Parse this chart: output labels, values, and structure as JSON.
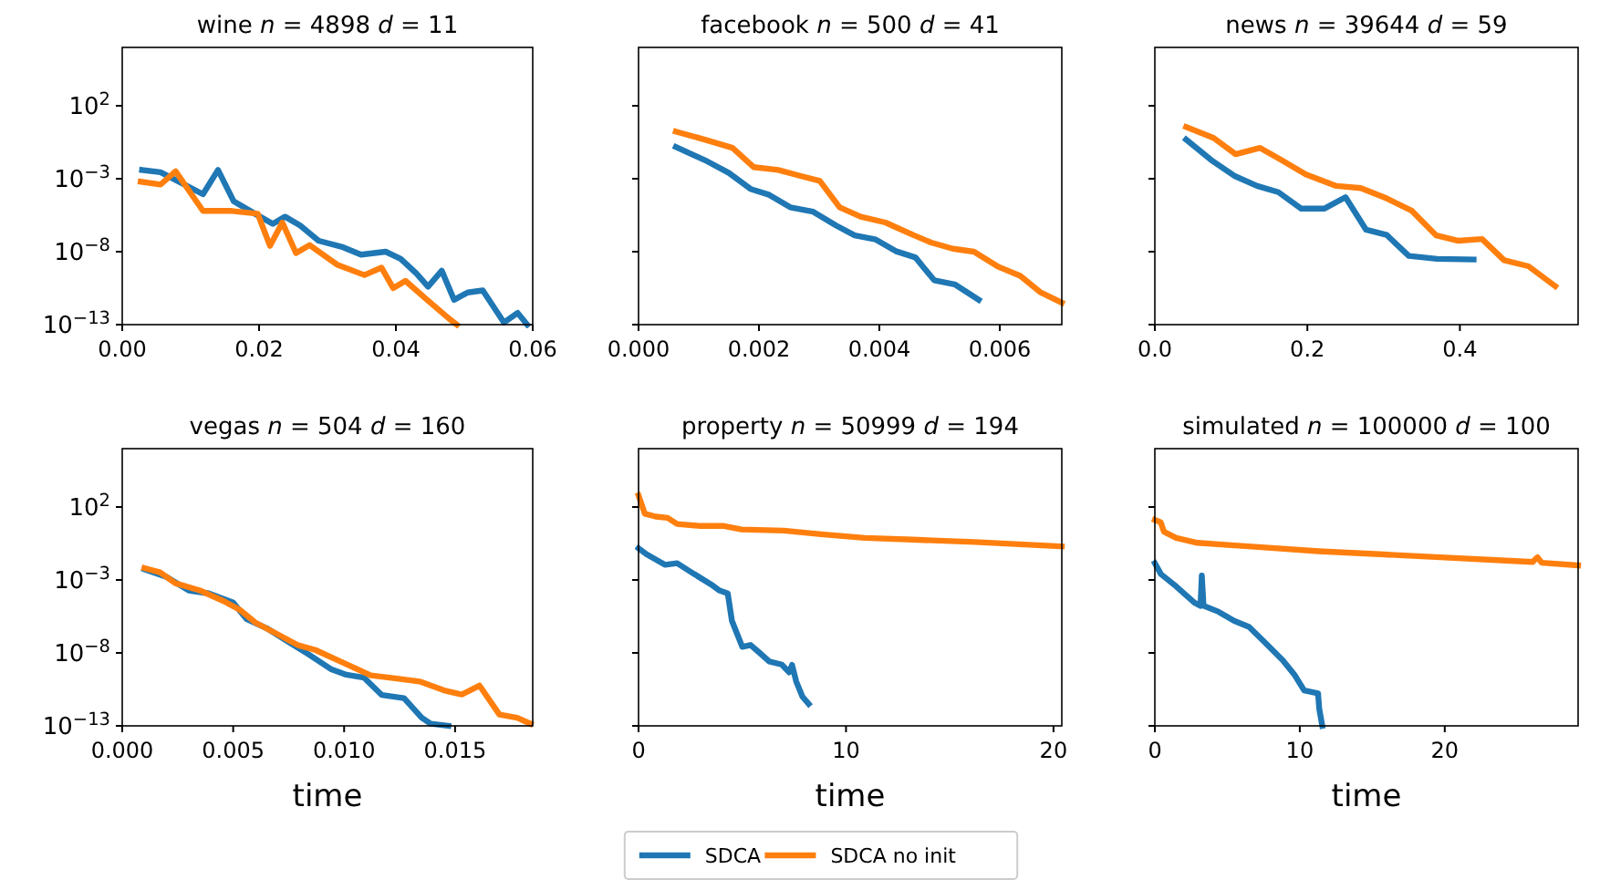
{
  "chart_data": [
    {
      "type": "line",
      "title": "wine n = 4898 d = 11",
      "log": "y",
      "legend": "bottom",
      "xlim": [
        0,
        0.06
      ],
      "xticks": [
        {
          "value": 0,
          "label": "0.00"
        },
        {
          "value": 0.02,
          "label": "0.02"
        },
        {
          "value": 0.04,
          "label": "0.04"
        },
        {
          "value": 0.06,
          "label": "0.06"
        }
      ],
      "ylim": [
        1e-13,
        1000000.0
      ],
      "yticks": [
        {
          "value": 1e-13,
          "label": "10$^{−13}$"
        },
        {
          "value": 1e-08,
          "label": "10$^{−8}$"
        },
        {
          "value": 0.001,
          "label": "10$^{−3}$"
        },
        {
          "value": 100,
          "label": "10$^{2}$"
        }
      ],
      "series": [
        {
          "name": "SDCA",
          "color": "#1f77b4",
          "x": [
            0.0029,
            0.0056,
            0.0087,
            0.0118,
            0.014,
            0.0163,
            0.0194,
            0.022,
            0.0238,
            0.026,
            0.0287,
            0.0323,
            0.0349,
            0.0385,
            0.0407,
            0.043,
            0.0447,
            0.0467,
            0.0485,
            0.0505,
            0.0527,
            0.0558,
            0.0578,
            0.0592
          ],
          "values": [
            0.004,
            0.0028,
            0.0005,
            8.7e-05,
            0.004,
            2.8e-05,
            4e-06,
            8e-07,
            2.5e-06,
            6.3e-07,
            5.6e-08,
            2e-08,
            6.3e-09,
            1e-08,
            3.2e-09,
            3.2e-10,
            4e-11,
            5e-10,
            5e-12,
            1.6e-11,
            2.2e-11,
            1.4e-13,
            6.3e-13,
            1e-13
          ]
        },
        {
          "name": "SDCA no init",
          "color": "#ff7f0e",
          "x": [
            0.0027,
            0.0056,
            0.0078,
            0.0118,
            0.0158,
            0.0198,
            0.0216,
            0.0234,
            0.0254,
            0.0274,
            0.0314,
            0.0354,
            0.0379,
            0.0396,
            0.0414,
            0.0443,
            0.0478,
            0.0489
          ],
          "values": [
            0.00063,
            0.0004,
            0.0032,
            6.3e-06,
            6.3e-06,
            4e-06,
            2.5e-08,
            1e-06,
            8e-09,
            2.8e-08,
            1.3e-09,
            2.5e-10,
            8e-10,
            3.2e-11,
            1e-10,
            6.3e-12,
            2.5e-13,
            1e-13
          ]
        }
      ]
    },
    {
      "type": "line",
      "title": "facebook n = 500 d = 41",
      "log": "y",
      "tick_labels": "x",
      "xlim": [
        0,
        0.00703
      ],
      "xticks": [
        {
          "value": 0,
          "label": "0.000"
        },
        {
          "value": 0.002,
          "label": "0.002"
        },
        {
          "value": 0.004,
          "label": "0.004"
        },
        {
          "value": 0.006,
          "label": "0.006"
        }
      ],
      "ylim": [
        1e-13,
        1000000.0
      ],
      "yticks": [
        {
          "value": 1e-13,
          "label": null
        },
        {
          "value": 1e-08,
          "label": null
        },
        {
          "value": 0.001,
          "label": null
        },
        {
          "value": 100,
          "label": null
        }
      ],
      "series": [
        {
          "color": "#1f77b4",
          "x": [
            0.00062,
            0.0011,
            0.0015,
            0.00186,
            0.00217,
            0.00252,
            0.0029,
            0.00328,
            0.00359,
            0.00394,
            0.00427,
            0.0046,
            0.00491,
            0.00525,
            0.00565
          ],
          "values": [
            0.15,
            0.019,
            0.0025,
            0.0002,
            7.9e-05,
            1.1e-05,
            5.5e-06,
            6.3e-07,
            1.3e-07,
            6.8e-08,
            1.1e-08,
            4e-09,
            1.1e-10,
            5.8e-11,
            5e-12
          ]
        },
        {
          "color": "#ff7f0e",
          "x": [
            0.00062,
            0.0011,
            0.00156,
            0.00191,
            0.00232,
            0.00268,
            0.00301,
            0.00334,
            0.00369,
            0.0041,
            0.00456,
            0.00486,
            0.00522,
            0.00557,
            0.00598,
            0.00634,
            0.00667,
            0.00703
          ],
          "values": [
            1.7,
            0.48,
            0.13,
            0.0063,
            0.004,
            0.0016,
            0.00071,
            1.1e-05,
            2.5e-06,
            1e-06,
            1.4e-07,
            4.2e-08,
            1.6e-08,
            1e-08,
            9.1e-10,
            2.2e-10,
            1.7e-11,
            3.2e-12
          ]
        }
      ]
    },
    {
      "type": "line",
      "title": "news n = 39644 d = 59",
      "log": "y",
      "tick_labels": "x",
      "xlim": [
        0,
        0.555
      ],
      "xticks": [
        {
          "value": 0,
          "label": "0.0"
        },
        {
          "value": 0.2,
          "label": "0.2"
        },
        {
          "value": 0.4,
          "label": "0.4"
        }
      ],
      "ylim": [
        1e-13,
        1000000.0
      ],
      "yticks": [
        {
          "value": 1e-13,
          "label": null
        },
        {
          "value": 1e-08,
          "label": null
        },
        {
          "value": 0.001,
          "label": null
        },
        {
          "value": 100,
          "label": null
        }
      ],
      "series": [
        {
          "color": "#1f77b4",
          "x": [
            0.041,
            0.074,
            0.104,
            0.134,
            0.162,
            0.192,
            0.222,
            0.25,
            0.277,
            0.304,
            0.333,
            0.37,
            0.418
          ],
          "values": [
            0.48,
            0.019,
            0.0016,
            0.00032,
            0.00012,
            8.9e-06,
            8.9e-06,
            5.4e-05,
            3.2e-07,
            1.4e-07,
            5.1e-09,
            3.2e-09,
            2.9e-09
          ]
        },
        {
          "color": "#ff7f0e",
          "x": [
            0.041,
            0.077,
            0.106,
            0.138,
            0.166,
            0.198,
            0.238,
            0.27,
            0.304,
            0.337,
            0.369,
            0.398,
            0.429,
            0.458,
            0.49,
            0.525
          ],
          "values": [
            3.5,
            0.63,
            0.048,
            0.13,
            0.019,
            0.002,
            0.00032,
            0.00023,
            4.5e-05,
            6.3e-06,
            1.3e-07,
            5.6e-08,
            7.4e-08,
            2.6e-09,
            1e-09,
            4.3e-11
          ]
        }
      ]
    },
    {
      "type": "line",
      "title": "vegas n = 504 d = 160",
      "xlabel": "time",
      "log": "y",
      "xlim": [
        0,
        0.0185
      ],
      "xticks": [
        {
          "value": 0,
          "label": "0.000"
        },
        {
          "value": 0.005,
          "label": "0.005"
        },
        {
          "value": 0.01,
          "label": "0.010"
        },
        {
          "value": 0.015,
          "label": "0.015"
        }
      ],
      "ylim": [
        1e-13,
        1000000.0
      ],
      "yticks": [
        {
          "value": 1e-13,
          "label": "10$^{−13}$"
        },
        {
          "value": 1e-08,
          "label": "10$^{−8}$"
        },
        {
          "value": 0.001,
          "label": "10$^{−3}$"
        },
        {
          "value": 100,
          "label": "10$^{2}$"
        }
      ],
      "series": [
        {
          "color": "#1f77b4",
          "x": [
            0.001,
            0.002,
            0.003,
            0.0039,
            0.005,
            0.0056,
            0.0065,
            0.0075,
            0.0084,
            0.0094,
            0.0101,
            0.0109,
            0.0117,
            0.0127,
            0.0135,
            0.0139,
            0.0147
          ],
          "values": [
            0.0054,
            0.0016,
            0.00019,
            0.00012,
            2.8e-05,
            2.1e-06,
            5e-07,
            5.6e-08,
            7.9e-09,
            7.9e-10,
            3.2e-10,
            2e-10,
            1.3e-11,
            7.9e-12,
            3.6e-13,
            1.4e-13,
            1e-13
          ]
        },
        {
          "color": "#ff7f0e",
          "x": [
            0.001,
            0.0017,
            0.0024,
            0.0035,
            0.0046,
            0.0053,
            0.006,
            0.0069,
            0.0079,
            0.0087,
            0.0097,
            0.0112,
            0.0123,
            0.0134,
            0.0145,
            0.0153,
            0.0161,
            0.017,
            0.0178,
            0.0184
          ],
          "values": [
            0.0065,
            0.0033,
            0.00059,
            0.00019,
            3.4e-05,
            8.9e-06,
            1.2e-06,
            2.3e-07,
            3.5e-08,
            1.6e-08,
            3.2e-09,
            2.9e-10,
            1.8e-10,
            1.1e-10,
            2.7e-11,
            1.4e-11,
            5.8e-11,
            5.9e-13,
            3.6e-13,
            1.4e-13
          ]
        }
      ]
    },
    {
      "type": "line",
      "title": "property n = 50999 d = 194",
      "xlabel": "time",
      "log": "y",
      "tick_labels": "x",
      "xlim": [
        0,
        20.4
      ],
      "xticks": [
        0,
        10,
        20
      ],
      "ylim": [
        1e-13,
        1000000.0
      ],
      "yticks": [
        {
          "value": 1e-13,
          "label": null
        },
        {
          "value": 1e-08,
          "label": null
        },
        {
          "value": 0.001,
          "label": null
        },
        {
          "value": 100,
          "label": null
        }
      ],
      "series": [
        {
          "color": "#1f77b4",
          "x": [
            0,
            0.38,
            1.27,
            1.86,
            2.6,
            3.5,
            3.9,
            4.3,
            4.5,
            5.0,
            5.4,
            5.84,
            6.3,
            6.9,
            7.26,
            7.4,
            7.6,
            7.9,
            8.2
          ],
          "values": [
            0.15,
            0.058,
            0.011,
            0.014,
            0.003,
            0.00049,
            0.00019,
            0.00012,
            1.6e-06,
            2.6e-08,
            3.5e-08,
            1e-08,
            2.6e-09,
            1.6e-09,
            4.7e-10,
            1.5e-09,
            1.1e-10,
            1e-11,
            3.2e-12
          ]
        },
        {
          "color": "#ff7f0e",
          "x": [
            0,
            0.3,
            0.83,
            1.4,
            1.86,
            2.9,
            4.07,
            4.96,
            7.0,
            8.8,
            10.9,
            13.2,
            16.2,
            20.4
          ],
          "values": [
            620,
            35,
            22,
            18,
            6.9,
            5.1,
            5.1,
            2.9,
            2.4,
            1.35,
            0.76,
            0.58,
            0.4,
            0.2
          ]
        }
      ]
    },
    {
      "type": "line",
      "title": "simulated n = 100000 d = 100",
      "xlabel": "time",
      "log": "y",
      "tick_labels": "x",
      "xlim": [
        0,
        29.2
      ],
      "xticks": [
        0,
        10,
        20
      ],
      "ylim": [
        1e-13,
        1000000.0
      ],
      "yticks": [
        {
          "value": 1e-13,
          "label": null
        },
        {
          "value": 1e-08,
          "label": null
        },
        {
          "value": 0.001,
          "label": null
        },
        {
          "value": 100,
          "label": null
        }
      ],
      "series": [
        {
          "color": "#1f77b4",
          "x": [
            0,
            0.42,
            1.47,
            2.73,
            3.15,
            3.24,
            3.36,
            4.4,
            5.46,
            6.5,
            7.56,
            8.82,
            9.66,
            10.3,
            11.26,
            11.34,
            11.55
          ],
          "values": [
            0.014,
            0.0025,
            0.00036,
            2.8e-05,
            1.7e-05,
            0.002,
            1.7e-05,
            6.6e-06,
            1.6e-06,
            6e-07,
            5.6e-08,
            3.2e-09,
            2.9e-10,
            2.7e-11,
            1.7e-11,
            1.5e-12,
            1e-13
          ]
        },
        {
          "color": "#ff7f0e",
          "x": [
            0,
            0.4,
            0.63,
            1.47,
            2.94,
            5.04,
            7.14,
            11.3,
            15.5,
            19.7,
            23.9,
            26.05,
            26.4,
            26.7,
            29.2
          ],
          "values": [
            13,
            9.1,
            2,
            0.76,
            0.35,
            0.25,
            0.18,
            0.093,
            0.058,
            0.036,
            0.022,
            0.017,
            0.036,
            0.015,
            0.01
          ]
        }
      ]
    }
  ]
}
